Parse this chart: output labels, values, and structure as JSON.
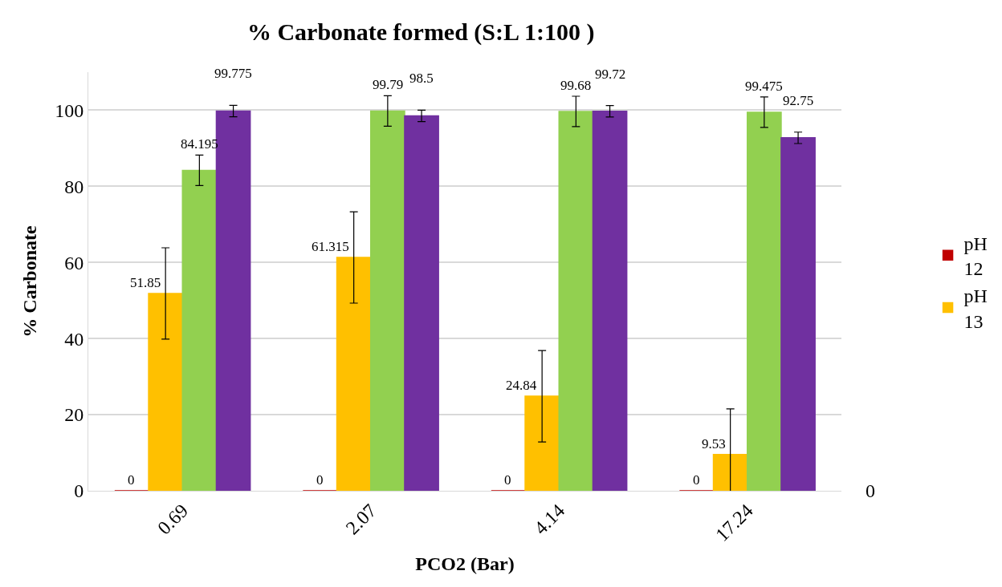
{
  "chart_data": {
    "type": "bar",
    "title": "% Carbonate formed (S:L 1:100 )",
    "xlabel": "PCO2 (Bar)",
    "ylabel": "% Carbonate",
    "categories": [
      "0.69",
      "2.07",
      "4.14",
      "17.24"
    ],
    "series": [
      {
        "name": "pH 12",
        "color": "#c00000",
        "values": [
          0,
          0,
          0,
          0
        ]
      },
      {
        "name": "pH 13",
        "color": "#ffc000",
        "values": [
          51.85,
          61.315,
          24.84,
          9.53
        ],
        "errors": [
          12,
          12,
          12,
          12
        ]
      },
      {
        "color": "#92d050",
        "values": [
          84.195,
          99.79,
          99.68,
          99.475
        ],
        "errors": [
          4,
          4,
          4,
          4
        ]
      },
      {
        "color": "#7030a0",
        "values": [
          99.775,
          98.5,
          99.72,
          92.75
        ],
        "errors": [
          1.5,
          1.5,
          1.5,
          1.5
        ]
      }
    ],
    "ylim": [
      0,
      110
    ],
    "yticks": [
      0,
      20,
      40,
      60,
      80,
      100
    ],
    "grid": "y",
    "legend": "right",
    "data_labels": true,
    "annotations": [
      "0"
    ]
  }
}
